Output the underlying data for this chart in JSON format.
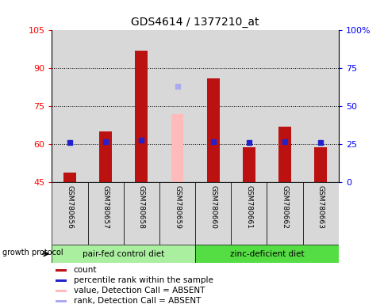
{
  "title": "GDS4614 / 1377210_at",
  "samples": [
    "GSM780656",
    "GSM780657",
    "GSM780658",
    "GSM780659",
    "GSM780660",
    "GSM780661",
    "GSM780662",
    "GSM780663"
  ],
  "count_values": [
    49,
    65,
    97,
    null,
    86,
    59,
    67,
    59
  ],
  "percentile_values": [
    26,
    27,
    28,
    null,
    27,
    26,
    27,
    26
  ],
  "absent_count_value": 72,
  "absent_rank_value": 63,
  "absent_sample_index": 3,
  "ylim_left": [
    45,
    105
  ],
  "ylim_right": [
    0,
    100
  ],
  "yticks_left": [
    45,
    60,
    75,
    90,
    105
  ],
  "yticks_right": [
    0,
    25,
    50,
    75,
    100
  ],
  "ytick_labels_left": [
    "45",
    "60",
    "75",
    "90",
    "105"
  ],
  "ytick_labels_right": [
    "0",
    "25",
    "50",
    "75",
    "100%"
  ],
  "group1_label": "pair-fed control diet",
  "group2_label": "zinc-deficient diet",
  "group1_color": "#aaeea0",
  "group2_color": "#55dd44",
  "group_protocol_label": "growth protocol",
  "bar_color_count": "#bb1111",
  "bar_color_absent": "#ffbbbb",
  "dot_color_percentile": "#2222cc",
  "dot_color_rank_absent": "#aaaaee",
  "bg_color": "#d8d8d8",
  "legend_items": [
    {
      "label": "count",
      "color": "#bb1111"
    },
    {
      "label": "percentile rank within the sample",
      "color": "#2222cc"
    },
    {
      "label": "value, Detection Call = ABSENT",
      "color": "#ffbbbb"
    },
    {
      "label": "rank, Detection Call = ABSENT",
      "color": "#aaaaee"
    }
  ],
  "grid_yticks": [
    60,
    75,
    90
  ],
  "dot_size": 30,
  "bar_width": 0.35,
  "figsize": [
    4.85,
    3.84
  ],
  "dpi": 100
}
